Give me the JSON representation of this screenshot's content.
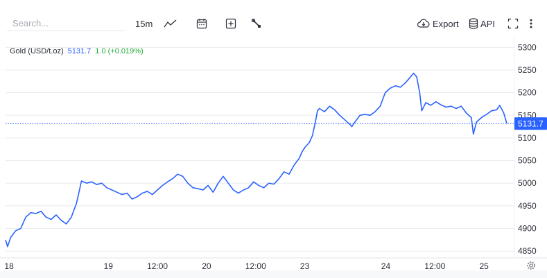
{
  "toolbar": {
    "search_placeholder": "Search...",
    "interval": "15m",
    "line_type_icon": "line-chart-icon",
    "calendar_icon": "calendar-icon",
    "compare_icon": "plus-box-icon",
    "tools_icon": "wrench-icon",
    "export_label": "Export",
    "export_icon": "cloud-download-icon",
    "api_label": "API",
    "api_icon": "database-icon",
    "fullscreen_icon": "fullscreen-icon",
    "more_icon": "more-vertical-icon"
  },
  "legend": {
    "symbol": "Gold (USD/t.oz)",
    "last": "5131.7",
    "change": "1.0 (+0.019%)"
  },
  "settings_icon": "gear-icon",
  "colors": {
    "line": "#2962ff",
    "up": "#22ab3b",
    "grid": "#e9ebef",
    "label_bg": "#2962ff"
  },
  "chart_data": {
    "type": "line",
    "title": "Gold (USD/t.oz)",
    "xlabel": "",
    "ylabel": "",
    "grid": true,
    "legend": "top-left",
    "ylim": [
      4835,
      5325
    ],
    "yticks": [
      4850,
      4900,
      4950,
      5000,
      5050,
      5100,
      5150,
      5200,
      5250,
      5300
    ],
    "xticks": [
      {
        "label": "18",
        "t": 0.035
      },
      {
        "label": "19",
        "t": 1.015
      },
      {
        "label": "12:00",
        "t": 1.5
      },
      {
        "label": "20",
        "t": 1.985
      },
      {
        "label": "12:00",
        "t": 2.47
      },
      {
        "label": "23",
        "t": 2.955
      },
      {
        "label": "24",
        "t": 3.755
      },
      {
        "label": "12:00",
        "t": 4.24
      },
      {
        "label": "25",
        "t": 4.725
      }
    ],
    "last_price": 5131.7,
    "series": [
      {
        "values": [
          [
            0.0,
            4875
          ],
          [
            0.02,
            4860
          ],
          [
            0.05,
            4880
          ],
          [
            0.1,
            4895
          ],
          [
            0.15,
            4900
          ],
          [
            0.2,
            4925
          ],
          [
            0.25,
            4935
          ],
          [
            0.3,
            4933
          ],
          [
            0.35,
            4938
          ],
          [
            0.4,
            4925
          ],
          [
            0.45,
            4920
          ],
          [
            0.5,
            4930
          ],
          [
            0.55,
            4918
          ],
          [
            0.6,
            4910
          ],
          [
            0.65,
            4925
          ],
          [
            0.7,
            4955
          ],
          [
            0.72,
            4975
          ],
          [
            0.75,
            5005
          ],
          [
            0.8,
            5000
          ],
          [
            0.85,
            5003
          ],
          [
            0.9,
            4997
          ],
          [
            0.95,
            5000
          ],
          [
            1.0,
            4990
          ],
          [
            1.05,
            4985
          ],
          [
            1.1,
            4980
          ],
          [
            1.15,
            4975
          ],
          [
            1.2,
            4978
          ],
          [
            1.25,
            4965
          ],
          [
            1.3,
            4970
          ],
          [
            1.35,
            4978
          ],
          [
            1.4,
            4982
          ],
          [
            1.45,
            4975
          ],
          [
            1.5,
            4985
          ],
          [
            1.55,
            4995
          ],
          [
            1.6,
            5003
          ],
          [
            1.65,
            5010
          ],
          [
            1.7,
            5020
          ],
          [
            1.75,
            5015
          ],
          [
            1.8,
            5000
          ],
          [
            1.85,
            4990
          ],
          [
            1.9,
            4988
          ],
          [
            1.95,
            4985
          ],
          [
            2.0,
            4995
          ],
          [
            2.05,
            4980
          ],
          [
            2.1,
            5000
          ],
          [
            2.15,
            5015
          ],
          [
            2.2,
            5000
          ],
          [
            2.25,
            4985
          ],
          [
            2.3,
            4978
          ],
          [
            2.35,
            4985
          ],
          [
            2.4,
            4990
          ],
          [
            2.45,
            5003
          ],
          [
            2.5,
            4995
          ],
          [
            2.55,
            4990
          ],
          [
            2.6,
            5000
          ],
          [
            2.65,
            4998
          ],
          [
            2.7,
            5010
          ],
          [
            2.75,
            5025
          ],
          [
            2.8,
            5020
          ],
          [
            2.85,
            5040
          ],
          [
            2.9,
            5055
          ],
          [
            2.93,
            5070
          ],
          [
            2.96,
            5080
          ],
          [
            3.0,
            5090
          ],
          [
            3.03,
            5105
          ],
          [
            3.06,
            5135
          ],
          [
            3.08,
            5160
          ],
          [
            3.1,
            5165
          ],
          [
            3.15,
            5158
          ],
          [
            3.2,
            5170
          ],
          [
            3.25,
            5162
          ],
          [
            3.3,
            5150
          ],
          [
            3.35,
            5140
          ],
          [
            3.4,
            5130
          ],
          [
            3.42,
            5125
          ],
          [
            3.45,
            5135
          ],
          [
            3.5,
            5150
          ],
          [
            3.55,
            5152
          ],
          [
            3.6,
            5150
          ],
          [
            3.65,
            5158
          ],
          [
            3.7,
            5170
          ],
          [
            3.75,
            5200
          ],
          [
            3.8,
            5210
          ],
          [
            3.85,
            5215
          ],
          [
            3.9,
            5212
          ],
          [
            3.95,
            5222
          ],
          [
            4.0,
            5235
          ],
          [
            4.03,
            5243
          ],
          [
            4.06,
            5235
          ],
          [
            4.09,
            5200
          ],
          [
            4.11,
            5160
          ],
          [
            4.15,
            5178
          ],
          [
            4.2,
            5172
          ],
          [
            4.25,
            5180
          ],
          [
            4.3,
            5173
          ],
          [
            4.35,
            5168
          ],
          [
            4.4,
            5170
          ],
          [
            4.45,
            5165
          ],
          [
            4.5,
            5170
          ],
          [
            4.55,
            5155
          ],
          [
            4.6,
            5145
          ],
          [
            4.62,
            5108
          ],
          [
            4.65,
            5135
          ],
          [
            4.7,
            5145
          ],
          [
            4.75,
            5152
          ],
          [
            4.8,
            5160
          ],
          [
            4.85,
            5162
          ],
          [
            4.88,
            5172
          ],
          [
            4.92,
            5155
          ],
          [
            4.95,
            5132
          ]
        ]
      }
    ]
  }
}
